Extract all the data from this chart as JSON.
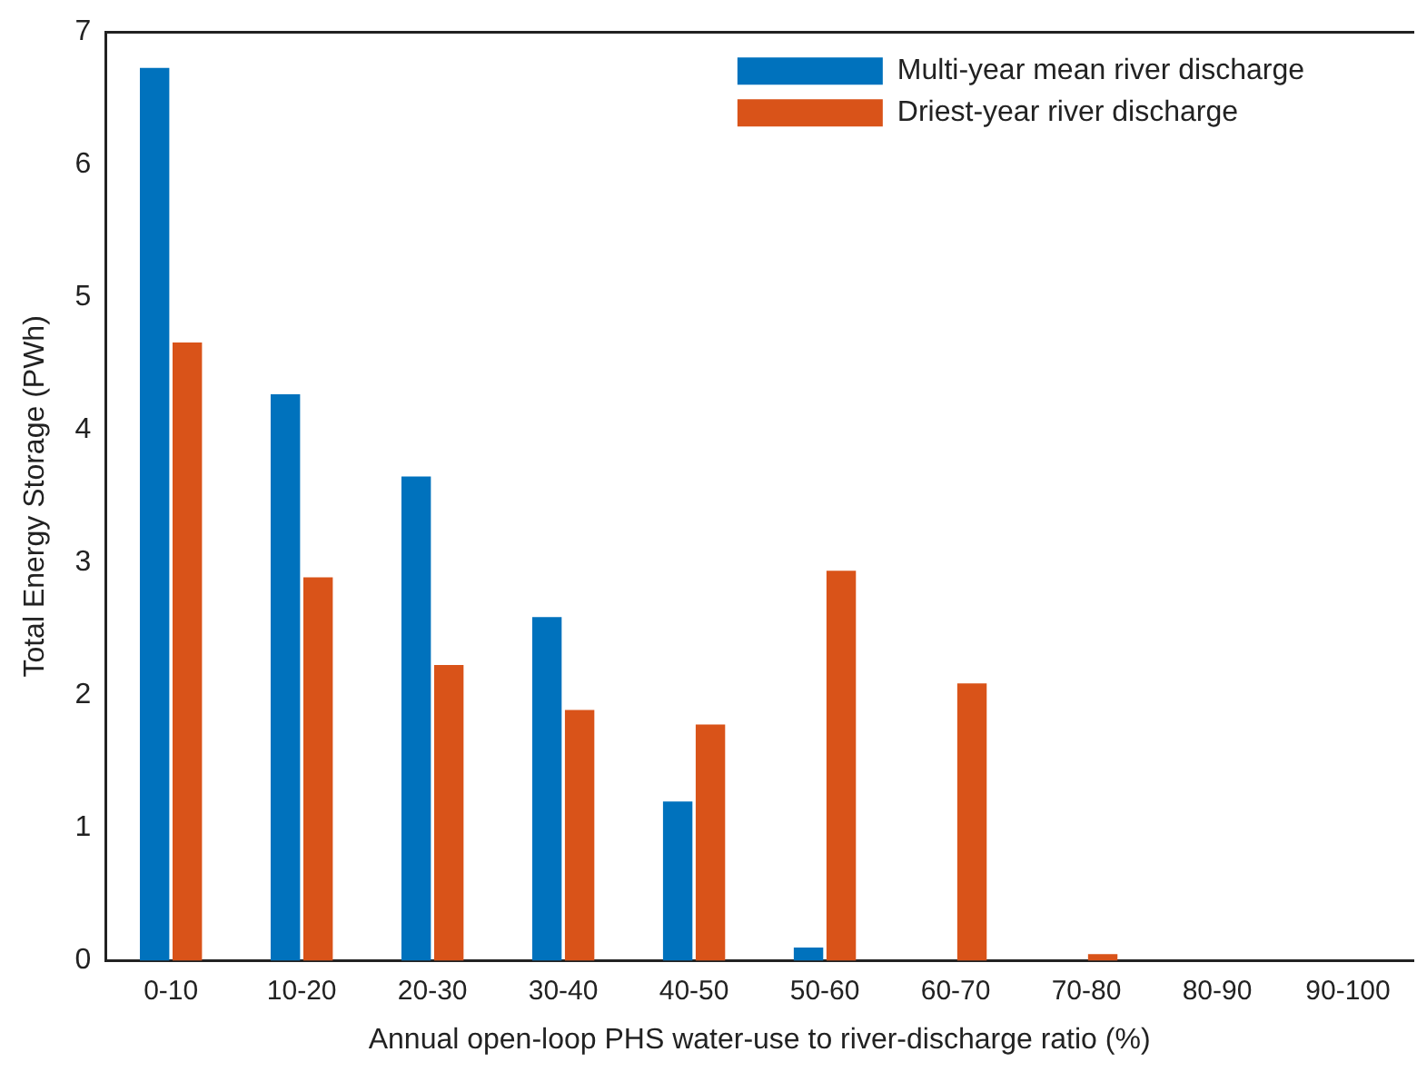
{
  "chart_data": {
    "type": "bar",
    "xlabel": "Annual open-loop PHS water-use to river-discharge ratio (%)",
    "ylabel": "Total Energy Storage (PWh)",
    "categories": [
      "0-10",
      "10-20",
      "20-30",
      "30-40",
      "40-50",
      "50-60",
      "60-70",
      "70-80",
      "80-90",
      "90-100"
    ],
    "series": [
      {
        "name": "Multi-year mean river discharge",
        "color": "#0072bd",
        "values": [
          6.73,
          4.27,
          3.65,
          2.59,
          1.2,
          0.1,
          0,
          0,
          0,
          0
        ]
      },
      {
        "name": "Driest-year river discharge",
        "color": "#d95319",
        "values": [
          4.66,
          2.89,
          2.23,
          1.89,
          1.78,
          2.94,
          2.09,
          0.05,
          0,
          0
        ]
      }
    ],
    "ylim": [
      0,
      7
    ],
    "yticks": [
      0,
      1,
      2,
      3,
      4,
      5,
      6,
      7
    ],
    "grid": false,
    "legend": "top right"
  }
}
